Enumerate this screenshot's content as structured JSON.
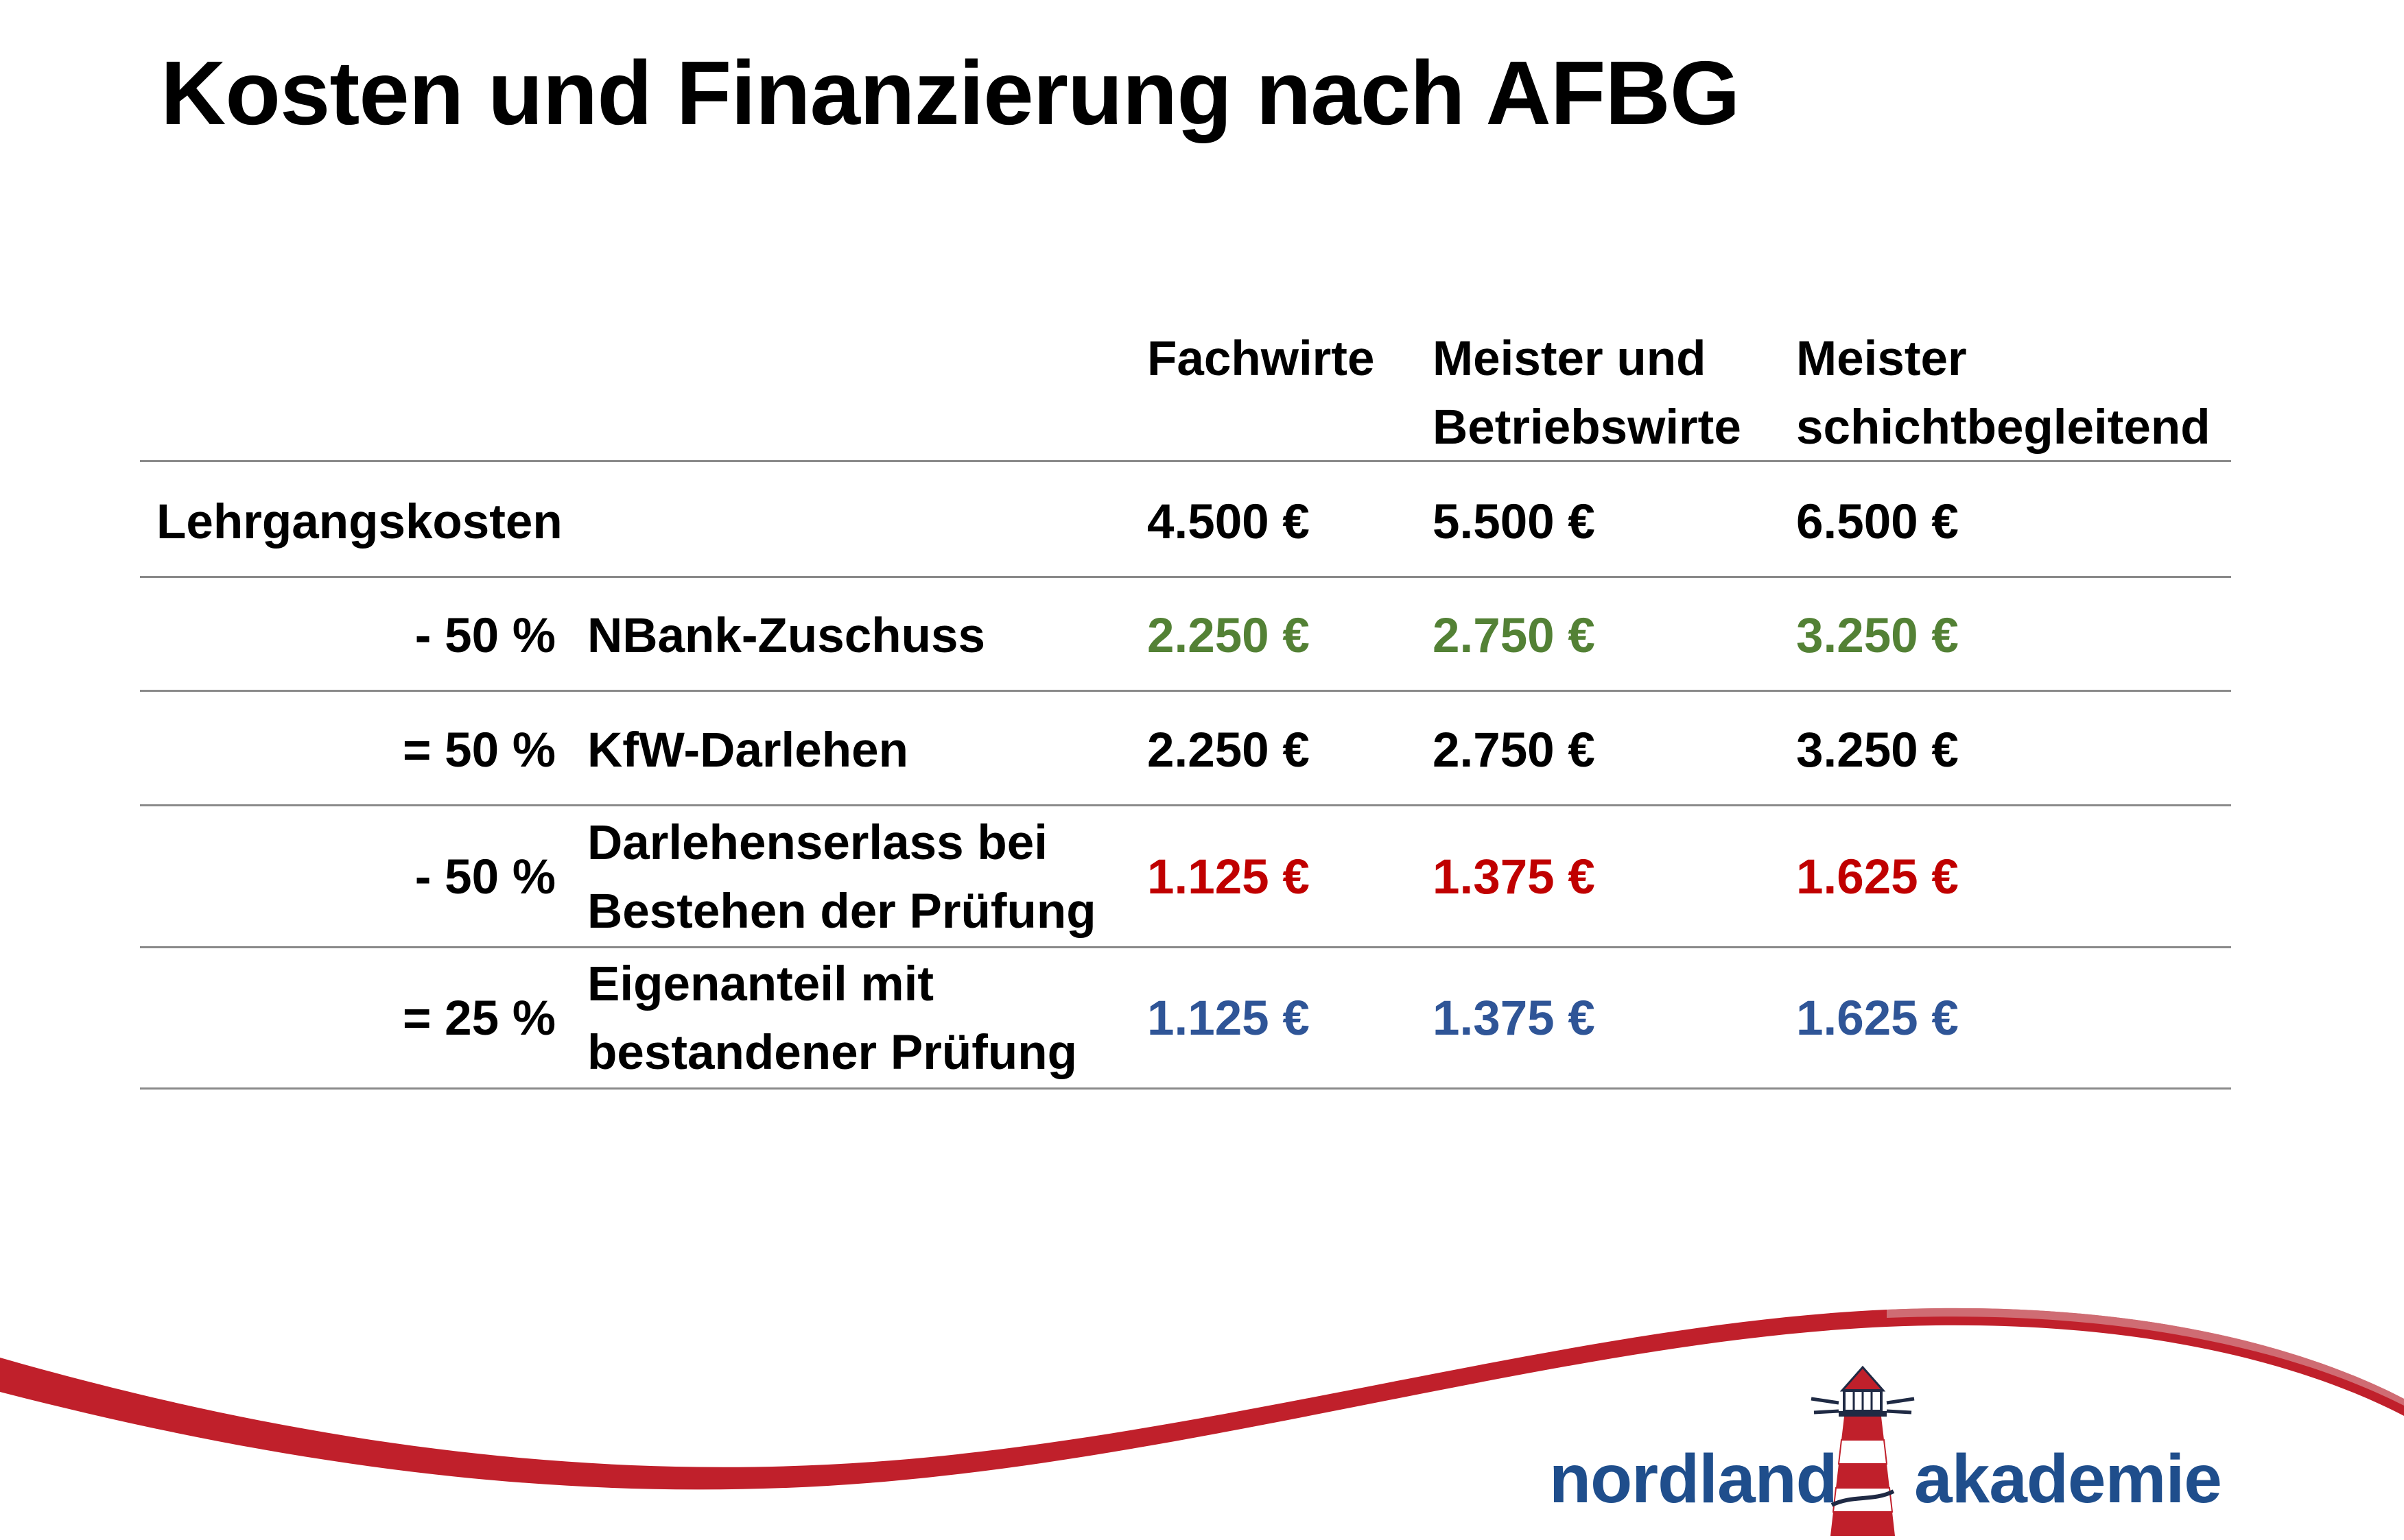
{
  "title": "Kosten und Finanzierung nach AFBG",
  "columns": [
    {
      "lines": [
        "Fachwirte"
      ]
    },
    {
      "lines": [
        "Meister und",
        "Betriebswirte"
      ]
    },
    {
      "lines": [
        "Meister",
        "schichtbegleitend"
      ]
    }
  ],
  "rows": [
    {
      "prefix": "",
      "label_lines": [
        "Lehrgangskosten"
      ],
      "values": [
        "4.500 €",
        "5.500 €",
        "6.500 €"
      ],
      "color": "#000000"
    },
    {
      "prefix": "-  50 %",
      "label_lines": [
        "NBank-Zuschuss"
      ],
      "values": [
        "2.250 €",
        "2.750 €",
        "3.250 €"
      ],
      "color": "#538135"
    },
    {
      "prefix": "= 50 %",
      "label_lines": [
        "KfW-Darlehen"
      ],
      "values": [
        "2.250 €",
        "2.750 €",
        "3.250 €"
      ],
      "color": "#000000"
    },
    {
      "prefix": "-  50 %",
      "label_lines": [
        "Darlehenserlass bei",
        "Bestehen der Prüfung"
      ],
      "values": [
        "1.125 €",
        "1.375 €",
        "1.625 €"
      ],
      "color": "#c00000"
    },
    {
      "prefix": "= 25 %",
      "label_lines": [
        "Eigenanteil mit",
        "bestandener Prüfung"
      ],
      "values": [
        "1.125 €",
        "1.375 €",
        "1.625 €"
      ],
      "color": "#2f5597"
    }
  ],
  "logo": {
    "left": "nordland",
    "right": "akademie"
  },
  "colors": {
    "green": "#538135",
    "red": "#c00000",
    "blue": "#2f5597",
    "logo_blue": "#1f4e8c",
    "swoosh_red": "#c0202b"
  }
}
